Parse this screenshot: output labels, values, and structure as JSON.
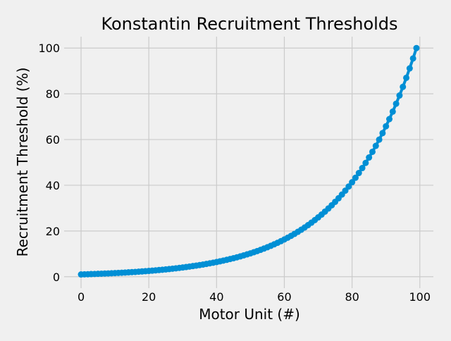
{
  "chart_data": {
    "type": "line",
    "title": "Konstantin Recruitment Thresholds",
    "xlabel": "Motor Unit (#)",
    "ylabel": "Recruitment Threshold (%)",
    "xlim": [
      -5,
      104
    ],
    "ylim": [
      -5,
      105
    ],
    "xticks": [
      0,
      20,
      40,
      60,
      80,
      100
    ],
    "yticks": [
      0,
      20,
      40,
      60,
      80,
      100
    ],
    "grid": true,
    "legend": null,
    "style": {
      "background": "#f0f0f0",
      "grid_color": "#cbcbcb",
      "line_color": "#008fd5",
      "marker": "o"
    },
    "series": [
      {
        "name": "Recruitment Threshold",
        "x": [
          0,
          1,
          2,
          3,
          4,
          5,
          6,
          7,
          8,
          9,
          10,
          11,
          12,
          13,
          14,
          15,
          16,
          17,
          18,
          19,
          20,
          21,
          22,
          23,
          24,
          25,
          26,
          27,
          28,
          29,
          30,
          31,
          32,
          33,
          34,
          35,
          36,
          37,
          38,
          39,
          40,
          41,
          42,
          43,
          44,
          45,
          46,
          47,
          48,
          49,
          50,
          51,
          52,
          53,
          54,
          55,
          56,
          57,
          58,
          59,
          60,
          61,
          62,
          63,
          64,
          65,
          66,
          67,
          68,
          69,
          70,
          71,
          72,
          73,
          74,
          75,
          76,
          77,
          78,
          79,
          80,
          81,
          82,
          83,
          84,
          85,
          86,
          87,
          88,
          89,
          90,
          91,
          92,
          93,
          94,
          95,
          96,
          97,
          98,
          99
        ],
        "values": [
          1.0,
          1.05,
          1.1,
          1.15,
          1.2,
          1.26,
          1.32,
          1.38,
          1.45,
          1.52,
          1.59,
          1.67,
          1.75,
          1.83,
          1.92,
          2.01,
          2.1,
          2.2,
          2.31,
          2.42,
          2.54,
          2.66,
          2.78,
          2.92,
          3.05,
          3.2,
          3.35,
          3.51,
          3.68,
          3.86,
          4.04,
          4.23,
          4.44,
          4.65,
          4.87,
          5.1,
          5.34,
          5.6,
          5.86,
          6.14,
          6.43,
          6.74,
          7.06,
          7.4,
          7.75,
          8.11,
          8.5,
          8.9,
          9.33,
          9.77,
          10.23,
          10.72,
          11.23,
          11.76,
          12.32,
          12.91,
          13.52,
          14.17,
          14.84,
          15.55,
          16.3,
          17.07,
          17.89,
          18.74,
          19.63,
          20.57,
          21.54,
          22.57,
          23.65,
          24.77,
          25.95,
          27.19,
          28.48,
          29.84,
          31.26,
          32.75,
          34.31,
          35.94,
          37.65,
          39.45,
          41.33,
          43.29,
          45.36,
          47.52,
          49.77,
          52.15,
          54.63,
          57.23,
          59.96,
          62.81,
          65.8,
          68.94,
          72.22,
          75.66,
          79.26,
          83.03,
          86.98,
          91.13,
          95.46,
          100.0
        ]
      }
    ]
  }
}
